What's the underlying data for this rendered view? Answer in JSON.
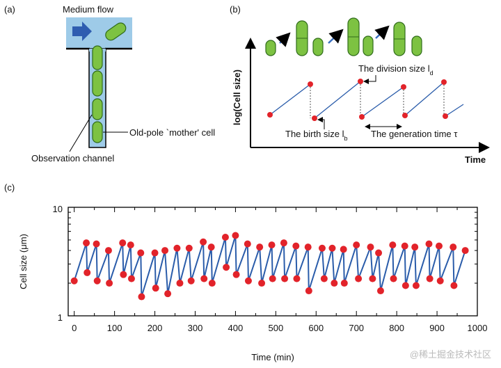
{
  "panel_a": {
    "label": "(a)",
    "flow_label": "Medium flow",
    "mother_label": "Old-pole `mother' cell",
    "channel_label": "Observation channel"
  },
  "panel_b": {
    "label": "(b)",
    "y_label": "log(Cell size)",
    "x_label": "Time",
    "division_label": {
      "text": "The division size l",
      "sub": "d"
    },
    "birth_label": {
      "text": "The birth size l",
      "sub": "b"
    },
    "generation_label": "The generation time τ"
  },
  "chart_data": {
    "type": "line",
    "panel_label": "(c)",
    "xlabel": "Time (min)",
    "ylabel": "Cell size (μm)",
    "log_y": true,
    "line_color": "#2a5caa",
    "marker_color": "#e2232a",
    "xlim": [
      -15,
      1000
    ],
    "ylim": [
      1,
      10
    ],
    "xticks": [
      0,
      100,
      200,
      300,
      400,
      500,
      600,
      700,
      800,
      900,
      1000
    ],
    "x_minor_ticks": [
      50,
      150,
      250,
      350,
      450,
      550,
      650,
      750,
      850,
      950
    ],
    "yticks": [
      1,
      10
    ],
    "y_minor_ticks": [
      2,
      3,
      4,
      5,
      6,
      7,
      8,
      9
    ],
    "x": [
      0,
      30,
      32,
      55,
      57,
      85,
      87,
      120,
      122,
      140,
      142,
      165,
      167,
      200,
      202,
      225,
      232,
      255,
      262,
      285,
      290,
      320,
      322,
      340,
      342,
      375,
      377,
      400,
      402,
      430,
      432,
      460,
      465,
      490,
      492,
      520,
      522,
      550,
      552,
      580,
      582,
      615,
      620,
      640,
      645,
      668,
      670,
      700,
      705,
      735,
      740,
      755,
      760,
      790,
      792,
      820,
      822,
      845,
      848,
      880,
      882,
      905,
      908,
      940,
      942,
      970
    ],
    "values": [
      2.1,
      4.7,
      2.5,
      4.6,
      2.1,
      4.0,
      2.0,
      4.7,
      2.4,
      4.5,
      2.2,
      3.8,
      1.5,
      3.8,
      1.8,
      4.0,
      1.6,
      4.2,
      2.0,
      4.2,
      2.1,
      4.8,
      2.2,
      4.3,
      2.0,
      5.3,
      2.8,
      5.5,
      2.4,
      4.6,
      2.1,
      4.3,
      2.0,
      4.5,
      2.2,
      4.7,
      2.2,
      4.4,
      2.2,
      4.3,
      1.7,
      4.2,
      2.2,
      4.2,
      2.0,
      4.1,
      2.0,
      4.5,
      2.2,
      4.3,
      2.2,
      3.8,
      1.7,
      4.5,
      2.2,
      4.4,
      1.9,
      4.3,
      1.9,
      4.6,
      2.2,
      4.4,
      2.1,
      4.3,
      1.9,
      4.0
    ]
  },
  "watermark": "@稀土掘金技术社区"
}
